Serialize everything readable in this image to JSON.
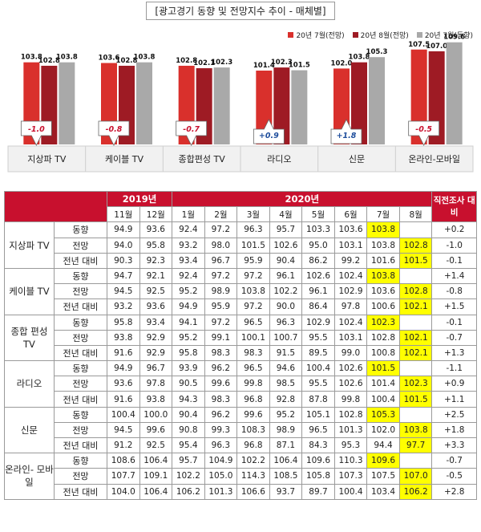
{
  "title": "[광고경기 동향 및 전망지수 추이 - 매체별]",
  "chart_data": {
    "type": "bar",
    "title": "[광고경기 동향 및 전망지수 추이 - 매체별]",
    "categories": [
      "지상파 TV",
      "케이블 TV",
      "종합편성 TV",
      "라디오",
      "신문",
      "온라인-모바일"
    ],
    "series": [
      {
        "name": "20년 7월(전망)",
        "values": [
          103.8,
          103.6,
          102.8,
          101.4,
          102.0,
          107.5
        ],
        "labels": [
          "103.8",
          "103.6",
          "102.8",
          "101.4",
          "102.0",
          "107.5"
        ],
        "color": "#d9302c"
      },
      {
        "name": "20년 8월(전망)",
        "values": [
          102.8,
          102.8,
          102.1,
          102.3,
          103.8,
          107.0
        ],
        "labels": [
          "102.8",
          "102.8",
          "102.1",
          "102.3",
          "103.8",
          "107.0"
        ],
        "color": "#9e1b24"
      },
      {
        "name": "20년 7월(동향)",
        "values": [
          103.8,
          103.8,
          102.3,
          101.5,
          105.3,
          109.6
        ],
        "labels": [
          "103.8",
          "103.8",
          "102.3",
          "101.5",
          "105.3",
          "109.6"
        ],
        "color": "#a9a9a9"
      }
    ],
    "annotations": [
      "-1.0",
      "-0.8",
      "-0.7",
      "+0.9",
      "+1.8",
      "-0.5"
    ],
    "annotation_direction": [
      "down",
      "down",
      "down",
      "up",
      "up",
      "down"
    ],
    "grid": false,
    "legend": "top-right"
  },
  "table": {
    "group_headers": {
      "y2019": "2019년",
      "y2020": "2020년",
      "last": "직전조사 대비"
    },
    "months": [
      "11월",
      "12월",
      "1월",
      "2월",
      "3월",
      "4월",
      "5월",
      "6월",
      "7월",
      "8월"
    ],
    "groups": [
      {
        "name": "지상파 TV",
        "rows": [
          {
            "label": "동향",
            "values": [
              "94.9",
              "93.6",
              "92.4",
              "97.2",
              "96.3",
              "95.7",
              "103.3",
              "103.6",
              "103.8",
              ""
            ],
            "hl": [
              8
            ],
            "diff": "+0.2"
          },
          {
            "label": "전망",
            "values": [
              "94.0",
              "95.8",
              "93.2",
              "98.0",
              "101.5",
              "102.6",
              "95.0",
              "103.1",
              "103.8",
              "102.8"
            ],
            "hl": [
              9
            ],
            "diff": "-1.0"
          },
          {
            "label": "전년 대비",
            "values": [
              "90.3",
              "92.3",
              "93.4",
              "96.7",
              "95.9",
              "90.4",
              "86.2",
              "99.2",
              "101.6",
              "101.5"
            ],
            "hl": [
              9
            ],
            "diff": "-0.1"
          }
        ]
      },
      {
        "name": "케이블 TV",
        "rows": [
          {
            "label": "동향",
            "values": [
              "94.7",
              "92.1",
              "92.4",
              "97.2",
              "97.2",
              "96.1",
              "102.6",
              "102.4",
              "103.8",
              ""
            ],
            "hl": [
              8
            ],
            "diff": "+1.4"
          },
          {
            "label": "전망",
            "values": [
              "94.5",
              "92.5",
              "95.2",
              "98.9",
              "103.8",
              "102.2",
              "96.1",
              "102.9",
              "103.6",
              "102.8"
            ],
            "hl": [
              9
            ],
            "diff": "-0.8"
          },
          {
            "label": "전년 대비",
            "values": [
              "93.2",
              "93.6",
              "94.9",
              "95.9",
              "97.2",
              "90.0",
              "86.4",
              "97.8",
              "100.6",
              "102.1"
            ],
            "hl": [
              9
            ],
            "diff": "+1.5"
          }
        ]
      },
      {
        "name": "종합 편성 TV",
        "rows": [
          {
            "label": "동향",
            "values": [
              "95.8",
              "93.4",
              "94.1",
              "97.2",
              "96.5",
              "96.3",
              "102.9",
              "102.4",
              "102.3",
              ""
            ],
            "hl": [
              8
            ],
            "diff": "-0.1"
          },
          {
            "label": "전망",
            "values": [
              "93.8",
              "92.9",
              "95.2",
              "99.1",
              "100.1",
              "100.7",
              "95.5",
              "103.1",
              "102.8",
              "102.1"
            ],
            "hl": [
              9
            ],
            "diff": "-0.7"
          },
          {
            "label": "전년 대비",
            "values": [
              "91.6",
              "92.9",
              "95.8",
              "98.3",
              "98.3",
              "91.5",
              "89.5",
              "99.0",
              "100.8",
              "102.1"
            ],
            "hl": [
              9
            ],
            "diff": "+1.3"
          }
        ]
      },
      {
        "name": "라디오",
        "rows": [
          {
            "label": "동향",
            "values": [
              "94.9",
              "96.7",
              "93.9",
              "96.2",
              "96.5",
              "94.6",
              "100.4",
              "102.6",
              "101.5",
              ""
            ],
            "hl": [
              8
            ],
            "diff": "-1.1"
          },
          {
            "label": "전망",
            "values": [
              "93.6",
              "97.8",
              "90.5",
              "99.6",
              "99.8",
              "98.5",
              "95.5",
              "102.6",
              "101.4",
              "102.3"
            ],
            "hl": [
              9
            ],
            "diff": "+0.9"
          },
          {
            "label": "전년 대비",
            "values": [
              "91.6",
              "93.8",
              "94.3",
              "98.3",
              "96.8",
              "92.8",
              "87.8",
              "99.8",
              "100.4",
              "101.5"
            ],
            "hl": [
              9
            ],
            "diff": "+1.1"
          }
        ]
      },
      {
        "name": "신문",
        "rows": [
          {
            "label": "동향",
            "values": [
              "100.4",
              "100.0",
              "90.4",
              "96.2",
              "99.6",
              "95.2",
              "105.1",
              "102.8",
              "105.3",
              ""
            ],
            "hl": [
              8
            ],
            "diff": "+2.5"
          },
          {
            "label": "전망",
            "values": [
              "94.5",
              "99.6",
              "90.8",
              "99.3",
              "108.3",
              "98.9",
              "96.5",
              "101.3",
              "102.0",
              "103.8"
            ],
            "hl": [
              9
            ],
            "diff": "+1.8"
          },
          {
            "label": "전년 대비",
            "values": [
              "91.2",
              "92.5",
              "95.4",
              "96.3",
              "96.8",
              "87.1",
              "84.3",
              "95.3",
              "94.4",
              "97.7"
            ],
            "hl": [
              9
            ],
            "diff": "+3.3"
          }
        ]
      },
      {
        "name": "온라인- 모바일",
        "rows": [
          {
            "label": "동향",
            "values": [
              "108.6",
              "106.4",
              "95.7",
              "104.9",
              "102.2",
              "106.4",
              "109.6",
              "110.3",
              "109.6",
              ""
            ],
            "hl": [
              8
            ],
            "diff": "-0.7"
          },
          {
            "label": "전망",
            "values": [
              "107.7",
              "109.1",
              "102.2",
              "105.0",
              "114.3",
              "108.5",
              "105.8",
              "107.3",
              "107.5",
              "107.0"
            ],
            "hl": [
              9
            ],
            "diff": "-0.5"
          },
          {
            "label": "전년 대비",
            "values": [
              "104.0",
              "106.4",
              "106.2",
              "101.3",
              "106.6",
              "93.7",
              "89.7",
              "100.4",
              "103.4",
              "106.2"
            ],
            "hl": [
              9
            ],
            "diff": "+2.8"
          }
        ]
      }
    ]
  }
}
